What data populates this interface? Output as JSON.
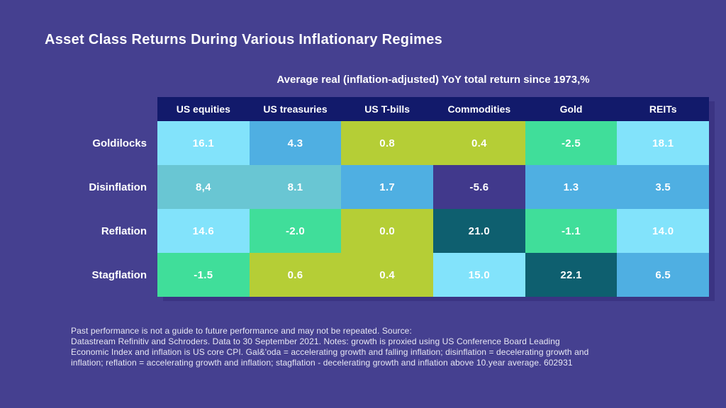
{
  "title": "Asset Class Returns During Various Inflationary Regimes",
  "subtitle": "Average real (inflation-adjusted) YoY total return since 1973,%",
  "palette": {
    "background": "#454090",
    "headerNavy": "#121a6b",
    "lightCyan": "#82e3fb",
    "blue": "#4fafe2",
    "teal": "#69c6d3",
    "yellowGreen": "#b5ce36",
    "green": "#40de9a",
    "darkIndigo": "#41398c",
    "darkTeal": "#0e5f6f",
    "tableShadow": "#3b3483",
    "textWhite": "#ffffff",
    "footnoteText": "#e8e8f4"
  },
  "chart_data": {
    "type": "heatmap",
    "title": "Asset Class Returns During Various Inflationary Regimes",
    "subtitle": "Average real (inflation-adjusted) YoY total return since 1973,%",
    "unit": "% (average real inflation-adjusted YoY total return since 1973)",
    "columns": [
      "US equities",
      "US treasuries",
      "US T-bills",
      "Commodities",
      "Gold",
      "REITs"
    ],
    "rows": [
      "Goldilocks",
      "Disinflation",
      "Reflation",
      "Stagflation"
    ],
    "values": [
      [
        16.1,
        4.3,
        0.8,
        0.4,
        -2.5,
        18.1
      ],
      [
        8.4,
        8.1,
        1.7,
        -5.6,
        1.3,
        3.5
      ],
      [
        14.6,
        -2.0,
        0.0,
        21.0,
        -1.1,
        14.0
      ],
      [
        -1.5,
        0.6,
        0.4,
        15.0,
        22.1,
        6.5
      ]
    ],
    "display_values": [
      [
        "16.1",
        "4.3",
        "0.8",
        "0.4",
        "-2.5",
        "18.1"
      ],
      [
        "8,4",
        "8.1",
        "1.7",
        "-5.6",
        "1.3",
        "3.5"
      ],
      [
        "14.6",
        "-2.0",
        "0.0",
        "21.0",
        "-1.1",
        "14.0"
      ],
      [
        "-1.5",
        "0.6",
        "0.4",
        "15.0",
        "22.1",
        "6.5"
      ]
    ],
    "cell_colors": [
      [
        "lightCyan",
        "blue",
        "yellowGreen",
        "yellowGreen",
        "green",
        "lightCyan"
      ],
      [
        "teal",
        "teal",
        "blue",
        "darkIndigo",
        "blue",
        "blue"
      ],
      [
        "lightCyan",
        "green",
        "yellowGreen",
        "darkTeal",
        "green",
        "lightCyan"
      ],
      [
        "green",
        "yellowGreen",
        "yellowGreen",
        "lightCyan",
        "darkTeal",
        "blue"
      ]
    ],
    "legend_position": "none",
    "grid": false
  },
  "footnote": {
    "lines": [
      "Past performance is not a guide to future performance and may not be repeated. Source:",
      "Datastream Refinitiv and Schroders. Data to 30 September 2021. Notes: growth is proxied using US Conference Board Leading",
      "Economic Index and inflation is US core CPI. Gal&'oda = accelerating growth and falling inflation; disinflation = decelerating growth and",
      "inflation; reflation = accelerating growth and inflation; stagflation - decelerating growth and inflation above 10.year average. 602931"
    ]
  }
}
